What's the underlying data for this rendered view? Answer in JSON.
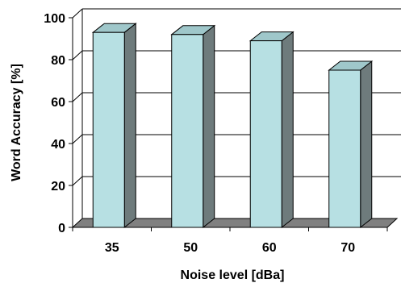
{
  "chart_data": {
    "type": "bar",
    "categories": [
      "35",
      "50",
      "60",
      "70"
    ],
    "values": [
      93,
      92,
      89,
      75
    ],
    "title": "",
    "xlabel": "Noise level [dBa]",
    "ylabel": "Word Accuracy [%]",
    "ylim": [
      0,
      100
    ],
    "yticks": [
      "0",
      "20",
      "40",
      "60",
      "80",
      "100"
    ],
    "grid": true,
    "style": "3d",
    "colors": {
      "bar_front": "#b7e0e3",
      "bar_side": "#6e7b7c",
      "bar_top": "#9fc7ca",
      "floor": "#808080",
      "grid": "#000000"
    }
  }
}
